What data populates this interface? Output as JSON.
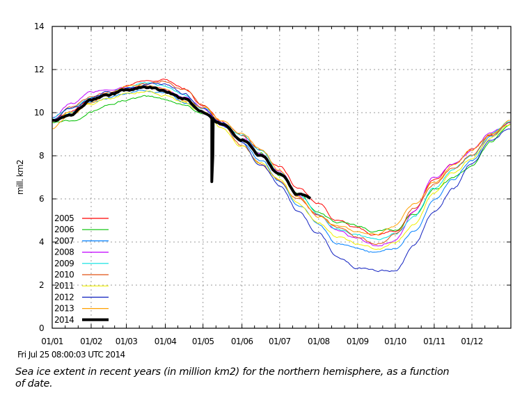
{
  "timestamp": "Fri Jul 25 08:00:03 UTC 2014",
  "caption": "Sea ice extent in recent years (in million km2) for the northern hemisphere, as a function of date.",
  "chart_data": {
    "type": "line",
    "title": "",
    "xlabel": "",
    "ylabel": "mill. km2",
    "xlim_day_of_year": [
      0,
      365
    ],
    "ylim": [
      0,
      14
    ],
    "grid": true,
    "legend_position": "bottom-left",
    "x_tick_labels": [
      "01/01",
      "01/02",
      "01/03",
      "01/04",
      "01/05",
      "01/06",
      "01/07",
      "01/08",
      "01/09",
      "01/10",
      "01/11",
      "01/12"
    ],
    "x_tick_days": [
      0,
      31,
      59,
      90,
      120,
      151,
      181,
      212,
      243,
      273,
      304,
      334
    ],
    "y_ticks": [
      0,
      2,
      4,
      6,
      8,
      10,
      12,
      14
    ],
    "x_day": [
      0,
      15,
      31,
      45,
      59,
      74,
      90,
      105,
      120,
      135,
      151,
      166,
      181,
      196,
      212,
      227,
      243,
      258,
      273,
      288,
      304,
      319,
      334,
      349,
      365
    ],
    "series": [
      {
        "name": "2005",
        "color": "#ff0000",
        "width": 1,
        "values": [
          9.7,
          10.1,
          10.6,
          10.9,
          11.2,
          11.4,
          11.5,
          11.1,
          10.3,
          9.6,
          9.0,
          8.3,
          7.5,
          6.5,
          5.8,
          5.0,
          4.6,
          4.3,
          4.5,
          5.4,
          6.9,
          7.6,
          8.3,
          9.0,
          9.5
        ]
      },
      {
        "name": "2006",
        "color": "#00c000",
        "width": 1,
        "values": [
          9.6,
          9.7,
          10.1,
          10.4,
          10.6,
          10.7,
          10.6,
          10.4,
          10.0,
          9.4,
          8.8,
          8.1,
          7.1,
          6.2,
          5.4,
          4.9,
          4.7,
          4.5,
          4.6,
          5.3,
          6.5,
          7.0,
          7.5,
          8.6,
          9.5
        ]
      },
      {
        "name": "2007",
        "color": "#0080ff",
        "width": 1,
        "values": [
          9.6,
          10.0,
          10.5,
          10.7,
          10.9,
          11.0,
          10.9,
          10.5,
          10.0,
          9.4,
          8.7,
          7.8,
          6.8,
          5.7,
          4.8,
          3.9,
          3.6,
          3.5,
          3.7,
          4.5,
          5.9,
          6.9,
          7.8,
          8.8,
          9.4
        ]
      },
      {
        "name": "2008",
        "color": "#c000ff",
        "width": 1,
        "values": [
          9.8,
          10.4,
          10.9,
          11.1,
          11.2,
          11.2,
          11.0,
          10.7,
          10.2,
          9.5,
          8.8,
          8.1,
          7.2,
          6.1,
          5.2,
          4.5,
          4.1,
          3.8,
          4.1,
          5.4,
          6.9,
          7.6,
          8.3,
          9.1,
          9.5
        ]
      },
      {
        "name": "2009",
        "color": "#00e0e0",
        "width": 1,
        "values": [
          9.8,
          10.3,
          10.7,
          10.9,
          11.1,
          11.3,
          11.2,
          10.9,
          10.3,
          9.6,
          8.9,
          8.2,
          7.2,
          6.2,
          5.3,
          4.6,
          4.3,
          4.1,
          4.4,
          5.2,
          6.5,
          7.3,
          8.0,
          9.0,
          9.6
        ]
      },
      {
        "name": "2010",
        "color": "#e05010",
        "width": 1,
        "values": [
          9.7,
          10.2,
          10.7,
          11.0,
          11.2,
          11.3,
          11.5,
          11.1,
          10.4,
          9.5,
          8.5,
          7.6,
          6.9,
          6.0,
          5.3,
          4.7,
          4.2,
          3.9,
          4.4,
          5.6,
          6.7,
          7.4,
          8.1,
          9.0,
          9.5
        ]
      },
      {
        "name": "2011",
        "color": "#f0f000",
        "width": 1,
        "values": [
          9.6,
          10.0,
          10.4,
          10.7,
          10.9,
          11.0,
          10.8,
          10.5,
          10.0,
          9.3,
          8.5,
          7.7,
          6.9,
          5.8,
          4.9,
          4.2,
          3.9,
          3.7,
          4.0,
          4.8,
          6.3,
          7.2,
          7.9,
          8.8,
          9.4
        ]
      },
      {
        "name": "2012",
        "color": "#1020c0",
        "width": 1,
        "values": [
          9.7,
          10.2,
          10.6,
          10.9,
          11.1,
          11.3,
          11.3,
          10.9,
          10.2,
          9.5,
          8.6,
          7.6,
          6.6,
          5.4,
          4.4,
          3.3,
          2.8,
          2.6,
          2.7,
          3.8,
          5.4,
          6.5,
          7.6,
          8.7,
          9.3
        ]
      },
      {
        "name": "2013",
        "color": "#ffa000",
        "width": 1,
        "values": [
          9.3,
          9.9,
          10.5,
          10.9,
          11.2,
          11.3,
          11.1,
          10.6,
          10.2,
          9.6,
          9.0,
          8.3,
          7.3,
          6.1,
          5.2,
          4.7,
          4.5,
          4.4,
          4.8,
          5.7,
          6.8,
          7.6,
          8.3,
          9.0,
          9.6
        ]
      },
      {
        "name": "2014",
        "color": "#000000",
        "width": 4,
        "values": [
          9.7,
          10.0,
          10.6,
          10.8,
          11.0,
          11.2,
          11.0,
          10.6,
          10.0,
          9.5,
          8.8,
          8.0,
          7.1,
          6.2,
          5.7,
          null,
          null,
          null,
          null,
          null,
          null,
          null,
          null,
          null,
          null
        ]
      }
    ],
    "annotations": [
      {
        "series": "2014",
        "day": 127,
        "dip_to": 6.8,
        "note": "sharp vertical drop in early May"
      }
    ]
  }
}
